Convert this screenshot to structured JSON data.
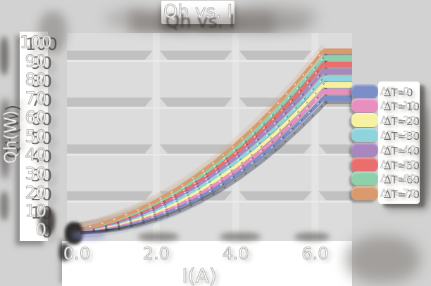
{
  "title": "Qh vs. I",
  "axes": {
    "x": {
      "label": "I(A)",
      "tick_labels": [
        "0.0",
        "2.0",
        "4.0",
        "6.0"
      ],
      "tick_values": [
        0,
        2,
        4,
        6
      ]
    },
    "y": {
      "label": "Qh(W)",
      "tick_labels": [
        "0",
        "10",
        "20",
        "30",
        "40",
        "50",
        "60",
        "70",
        "80",
        "90",
        "100"
      ],
      "tick_values": [
        0,
        10,
        20,
        30,
        40,
        50,
        60,
        70,
        80,
        90,
        100
      ]
    }
  },
  "colors": {
    "figure_bg": "#d2d2d2",
    "plot_bg": "#dcdcdc",
    "grid_band": "#c1c1c1",
    "grid_light": "#eaeaea",
    "v_gridline": "#e4e4e4",
    "text_fill": "#ffffff",
    "text_outline": "#b4b2af",
    "shadow": "#3a3632"
  },
  "legend": {
    "items": [
      "ΔT=0",
      "ΔT=10",
      "ΔT=20",
      "ΔT=30",
      "ΔT=40",
      "ΔT=50",
      "ΔT=60",
      "ΔT=70"
    ]
  },
  "chart_data": {
    "type": "line",
    "title": "Qh vs. I",
    "xlabel": "I(A)",
    "ylabel": "Qh(W)",
    "xlim": [
      -0.25,
      6.93
    ],
    "ylim": [
      -6,
      105
    ],
    "x_gridlines": [
      2,
      4,
      6
    ],
    "y_gridlines": [
      25,
      50,
      75,
      100
    ],
    "legend_position": "right",
    "x": [
      0,
      0.5,
      1,
      1.5,
      2,
      2.5,
      3,
      3.5,
      4,
      4.5,
      5,
      5.5,
      6,
      6.2
    ],
    "series": [
      {
        "name": "ΔT=0",
        "delta_t": 0,
        "color": "#7b8ec8",
        "values": [
          0,
          0.5,
          1.8,
          4.1,
          7.3,
          11.4,
          16.4,
          22.3,
          29.1,
          36.9,
          45.5,
          55.1,
          65.5,
          70.0
        ]
      },
      {
        "name": "ΔT=10",
        "delta_t": 10,
        "color": "#e98fc0",
        "values": [
          0,
          0.7,
          2.4,
          5.0,
          8.4,
          12.8,
          18.1,
          24.3,
          31.4,
          39.5,
          48.4,
          58.3,
          69.0,
          73.6
        ]
      },
      {
        "name": "ΔT=20",
        "delta_t": 20,
        "color": "#f6f2a2",
        "values": [
          0,
          1.0,
          3.0,
          5.8,
          9.6,
          14.3,
          19.9,
          26.4,
          33.8,
          42.1,
          51.3,
          61.5,
          72.5,
          77.2
        ]
      },
      {
        "name": "ΔT=30",
        "delta_t": 30,
        "color": "#90d3dc",
        "values": [
          0,
          1.3,
          3.6,
          6.7,
          10.8,
          15.7,
          21.6,
          28.4,
          36.1,
          44.7,
          54.2,
          64.7,
          76.0,
          80.8
        ]
      },
      {
        "name": "ΔT=40",
        "delta_t": 40,
        "color": "#a886bf",
        "values": [
          0,
          1.6,
          4.1,
          7.6,
          11.9,
          17.2,
          23.3,
          30.4,
          38.4,
          47.3,
          57.1,
          67.8,
          79.5,
          84.4
        ]
      },
      {
        "name": "ΔT=50",
        "delta_t": 50,
        "color": "#e96e6d",
        "values": [
          0,
          1.9,
          4.7,
          8.5,
          13.1,
          18.6,
          25.1,
          32.5,
          40.7,
          49.9,
          60.0,
          71.0,
          83.0,
          88.0
        ]
      },
      {
        "name": "ΔT=60",
        "delta_t": 60,
        "color": "#8ecfac",
        "values": [
          0,
          2.2,
          5.3,
          9.3,
          14.3,
          20.1,
          26.8,
          34.5,
          43.1,
          52.5,
          62.9,
          74.2,
          86.4,
          91.6
        ]
      },
      {
        "name": "ΔT=70",
        "delta_t": 70,
        "color": "#d99b6e",
        "values": [
          0,
          2.5,
          5.9,
          10.2,
          15.4,
          21.5,
          28.6,
          36.5,
          45.4,
          55.1,
          65.8,
          77.4,
          89.9,
          95.2
        ]
      }
    ]
  }
}
